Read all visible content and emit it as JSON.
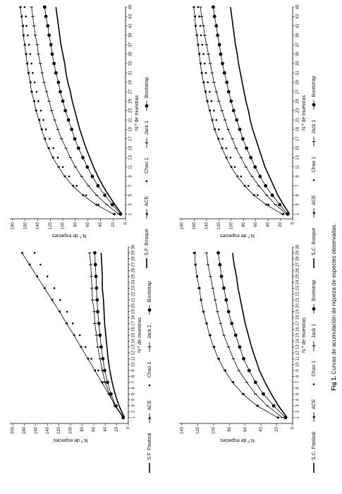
{
  "caption": {
    "label": "Fig 1.",
    "text": "Curvas de acumulación de riqueza de especies observadas."
  },
  "chart_data": [
    {
      "type": "line",
      "xlabel": "N.º de muestras",
      "ylabel": "N.º de especies",
      "xlim": [
        0,
        45
      ],
      "xticks": [
        1,
        3,
        5,
        7,
        9,
        11,
        13,
        15,
        17,
        19,
        21,
        23,
        25,
        27,
        29,
        31,
        33,
        35,
        37,
        39,
        41,
        43,
        45
      ],
      "ylim": [
        0,
        180
      ],
      "yticks": [
        0,
        20,
        40,
        60,
        80,
        100,
        120,
        140,
        160,
        180
      ],
      "x": [
        1,
        3,
        5,
        7,
        9,
        11,
        13,
        15,
        17,
        19,
        21,
        23,
        25,
        27,
        29,
        31,
        33,
        35,
        37,
        39,
        41,
        43,
        45
      ],
      "series": [
        {
          "name": "S.F. Bosque",
          "color": "#000000",
          "marker": "none",
          "line": true,
          "values": [
            6,
            17,
            27,
            36,
            44,
            51,
            57,
            63,
            68,
            73,
            77,
            81,
            85,
            88,
            92,
            95,
            97,
            100,
            103,
            105,
            107,
            109,
            111
          ]
        },
        {
          "name": "ACE",
          "color": "#000000",
          "marker": "triangle",
          "line": true,
          "values": [
            19,
            47,
            68,
            84,
            97,
            107,
            116,
            123,
            129,
            134,
            138,
            143,
            146,
            150,
            152,
            155,
            157,
            159,
            161,
            163,
            164,
            166,
            168
          ]
        },
        {
          "name": "Chao 1",
          "color": "#000000",
          "marker": "dot",
          "line": false,
          "values": [
            17,
            43,
            63,
            78,
            90,
            100,
            108,
            115,
            121,
            127,
            131,
            135,
            139,
            142,
            145,
            148,
            150,
            152,
            154,
            156,
            158,
            159,
            161
          ]
        },
        {
          "name": "Jack 1",
          "color": "#000000",
          "marker": "dash",
          "line": true,
          "values": [
            11,
            30,
            46,
            59,
            70,
            80,
            88,
            95,
            102,
            108,
            113,
            118,
            122,
            126,
            130,
            133,
            136,
            139,
            141,
            144,
            146,
            148,
            150
          ]
        },
        {
          "name": "Bootstrap",
          "color": "#000000",
          "marker": "circle",
          "line": true,
          "values": [
            8,
            21,
            33,
            44,
            53,
            61,
            68,
            75,
            81,
            86,
            91,
            96,
            100,
            104,
            107,
            111,
            114,
            117,
            119,
            122,
            124,
            127,
            129
          ]
        }
      ]
    },
    {
      "type": "line",
      "xlabel": "N.º de muestras",
      "ylabel": "N.º de especies",
      "xlim": [
        0,
        30
      ],
      "xticks": [
        1,
        2,
        3,
        4,
        5,
        6,
        7,
        8,
        9,
        10,
        11,
        12,
        13,
        14,
        15,
        16,
        17,
        18,
        19,
        20,
        21,
        22,
        23,
        24,
        25,
        26,
        27,
        28,
        29,
        30
      ],
      "ylim": [
        0,
        200
      ],
      "yticks": [
        0,
        20,
        40,
        60,
        80,
        100,
        120,
        140,
        160,
        180,
        200
      ],
      "x": [
        1,
        3,
        5,
        7,
        9,
        11,
        13,
        15,
        17,
        19,
        21,
        23,
        25,
        27,
        29
      ],
      "series": [
        {
          "name": "S.F. Pastizal",
          "color": "#000000",
          "marker": "none",
          "line": true,
          "values": [
            7,
            16,
            23,
            28,
            32,
            35,
            37,
            39,
            41,
            42,
            43,
            45,
            45,
            46,
            47
          ]
        },
        {
          "name": "ACE",
          "color": "#000000",
          "marker": "triangle",
          "line": true,
          "values": [
            8,
            22,
            34,
            46,
            58,
            70,
            82,
            94,
            107,
            119,
            132,
            145,
            158,
            171,
            184
          ]
        },
        {
          "name": "Chao 1",
          "color": "#000000",
          "marker": "dot",
          "line": false,
          "values": [
            8,
            20,
            30,
            42,
            52,
            64,
            74,
            84,
            96,
            106,
            118,
            128,
            140,
            152,
            162
          ]
        },
        {
          "name": "Jack 1",
          "color": "#000000",
          "marker": "dash",
          "line": true,
          "values": [
            9,
            23,
            33,
            40,
            45,
            49,
            53,
            55,
            58,
            59,
            62,
            63,
            64,
            65,
            67
          ]
        },
        {
          "name": "Bootstrap",
          "color": "#000000",
          "marker": "circle",
          "line": true,
          "values": [
            9,
            22,
            30,
            36,
            41,
            44,
            47,
            49,
            51,
            53,
            54,
            55,
            56,
            57,
            58
          ]
        }
      ]
    },
    {
      "type": "line",
      "xlabel": "N.º de muestras",
      "ylabel": "N.º de especies",
      "xlim": [
        0,
        45
      ],
      "xticks": [
        1,
        3,
        5,
        7,
        9,
        11,
        13,
        15,
        17,
        19,
        21,
        23,
        25,
        27,
        29,
        31,
        33,
        35,
        37,
        39,
        41,
        43,
        45
      ],
      "ylim": [
        0,
        180
      ],
      "yticks": [
        0,
        20,
        40,
        60,
        80,
        100,
        120,
        140,
        160,
        180
      ],
      "x": [
        1,
        3,
        5,
        7,
        9,
        11,
        13,
        15,
        17,
        19,
        21,
        23,
        25,
        27,
        29,
        31,
        33,
        35,
        37,
        39,
        41,
        43,
        45
      ],
      "series": [
        {
          "name": "S.C. Bosque",
          "color": "#000000",
          "marker": "none",
          "line": true,
          "values": [
            5,
            15,
            24,
            31,
            38,
            45,
            50,
            55,
            60,
            65,
            69,
            72,
            76,
            79,
            82,
            85,
            88,
            90,
            93,
            95,
            97,
            99,
            101
          ]
        },
        {
          "name": "ACE",
          "color": "#000000",
          "marker": "triangle",
          "line": true,
          "values": [
            17,
            43,
            63,
            78,
            90,
            100,
            108,
            115,
            121,
            127,
            131,
            135,
            139,
            142,
            145,
            148,
            150,
            152,
            154,
            156,
            158,
            159,
            161
          ]
        },
        {
          "name": "Chao 1",
          "color": "#000000",
          "marker": "dot",
          "line": false,
          "values": [
            15,
            39,
            57,
            72,
            84,
            94,
            101,
            108,
            114,
            120,
            124,
            128,
            132,
            135,
            138,
            141,
            143,
            145,
            147,
            149,
            150,
            152,
            154
          ]
        },
        {
          "name": "Jack 1",
          "color": "#000000",
          "marker": "dash",
          "line": true,
          "values": [
            10,
            28,
            42,
            55,
            66,
            76,
            84,
            92,
            98,
            105,
            110,
            115,
            120,
            124,
            128,
            131,
            134,
            137,
            140,
            143,
            145,
            148,
            150
          ]
        },
        {
          "name": "Bootstrap",
          "color": "#000000",
          "marker": "circle",
          "line": true,
          "values": [
            8,
            21,
            33,
            44,
            53,
            61,
            68,
            75,
            81,
            86,
            91,
            96,
            100,
            104,
            107,
            111,
            114,
            117,
            119,
            122,
            124,
            127,
            129
          ]
        }
      ]
    },
    {
      "type": "line",
      "xlabel": "N.º de muestras",
      "ylabel": "N.º de especies",
      "xlim": [
        0,
        30
      ],
      "xticks": [
        1,
        2,
        3,
        4,
        5,
        6,
        7,
        8,
        9,
        10,
        11,
        12,
        13,
        14,
        15,
        16,
        17,
        18,
        19,
        20,
        21,
        22,
        23,
        24,
        25,
        26,
        27,
        28,
        29,
        30
      ],
      "ylim": [
        0,
        140
      ],
      "yticks": [
        0,
        20,
        40,
        60,
        80,
        100,
        120,
        140
      ],
      "x": [
        1,
        3,
        5,
        7,
        9,
        11,
        13,
        15,
        17,
        19,
        21,
        23,
        25,
        27,
        29
      ],
      "series": [
        {
          "name": "S.C. Pastizal",
          "color": "#000000",
          "marker": "none",
          "line": true,
          "values": [
            7,
            18,
            27,
            35,
            42,
            47,
            52,
            56,
            60,
            63,
            66,
            69,
            71,
            74,
            76
          ]
        },
        {
          "name": "ACE",
          "color": "#000000",
          "marker": "triangle",
          "line": true,
          "values": [
            19,
            45,
            63,
            76,
            86,
            94,
            100,
            105,
            109,
            113,
            116,
            118,
            121,
            123,
            124
          ]
        },
        {
          "name": "Chao 1",
          "color": "#000000",
          "marker": "dot",
          "line": false,
          "values": [
            18,
            44,
            62,
            75,
            85,
            93,
            99,
            104,
            109,
            113,
            116,
            119,
            121,
            123,
            125
          ]
        },
        {
          "name": "Jack 1",
          "color": "#000000",
          "marker": "dash",
          "line": true,
          "values": [
            13,
            32,
            47,
            58,
            68,
            75,
            81,
            87,
            91,
            95,
            98,
            101,
            104,
            107,
            109
          ]
        },
        {
          "name": "Bootstrap",
          "color": "#000000",
          "marker": "circle",
          "line": true,
          "values": [
            9,
            24,
            37,
            47,
            55,
            62,
            67,
            72,
            77,
            81,
            84,
            87,
            90,
            92,
            94
          ]
        }
      ]
    }
  ]
}
